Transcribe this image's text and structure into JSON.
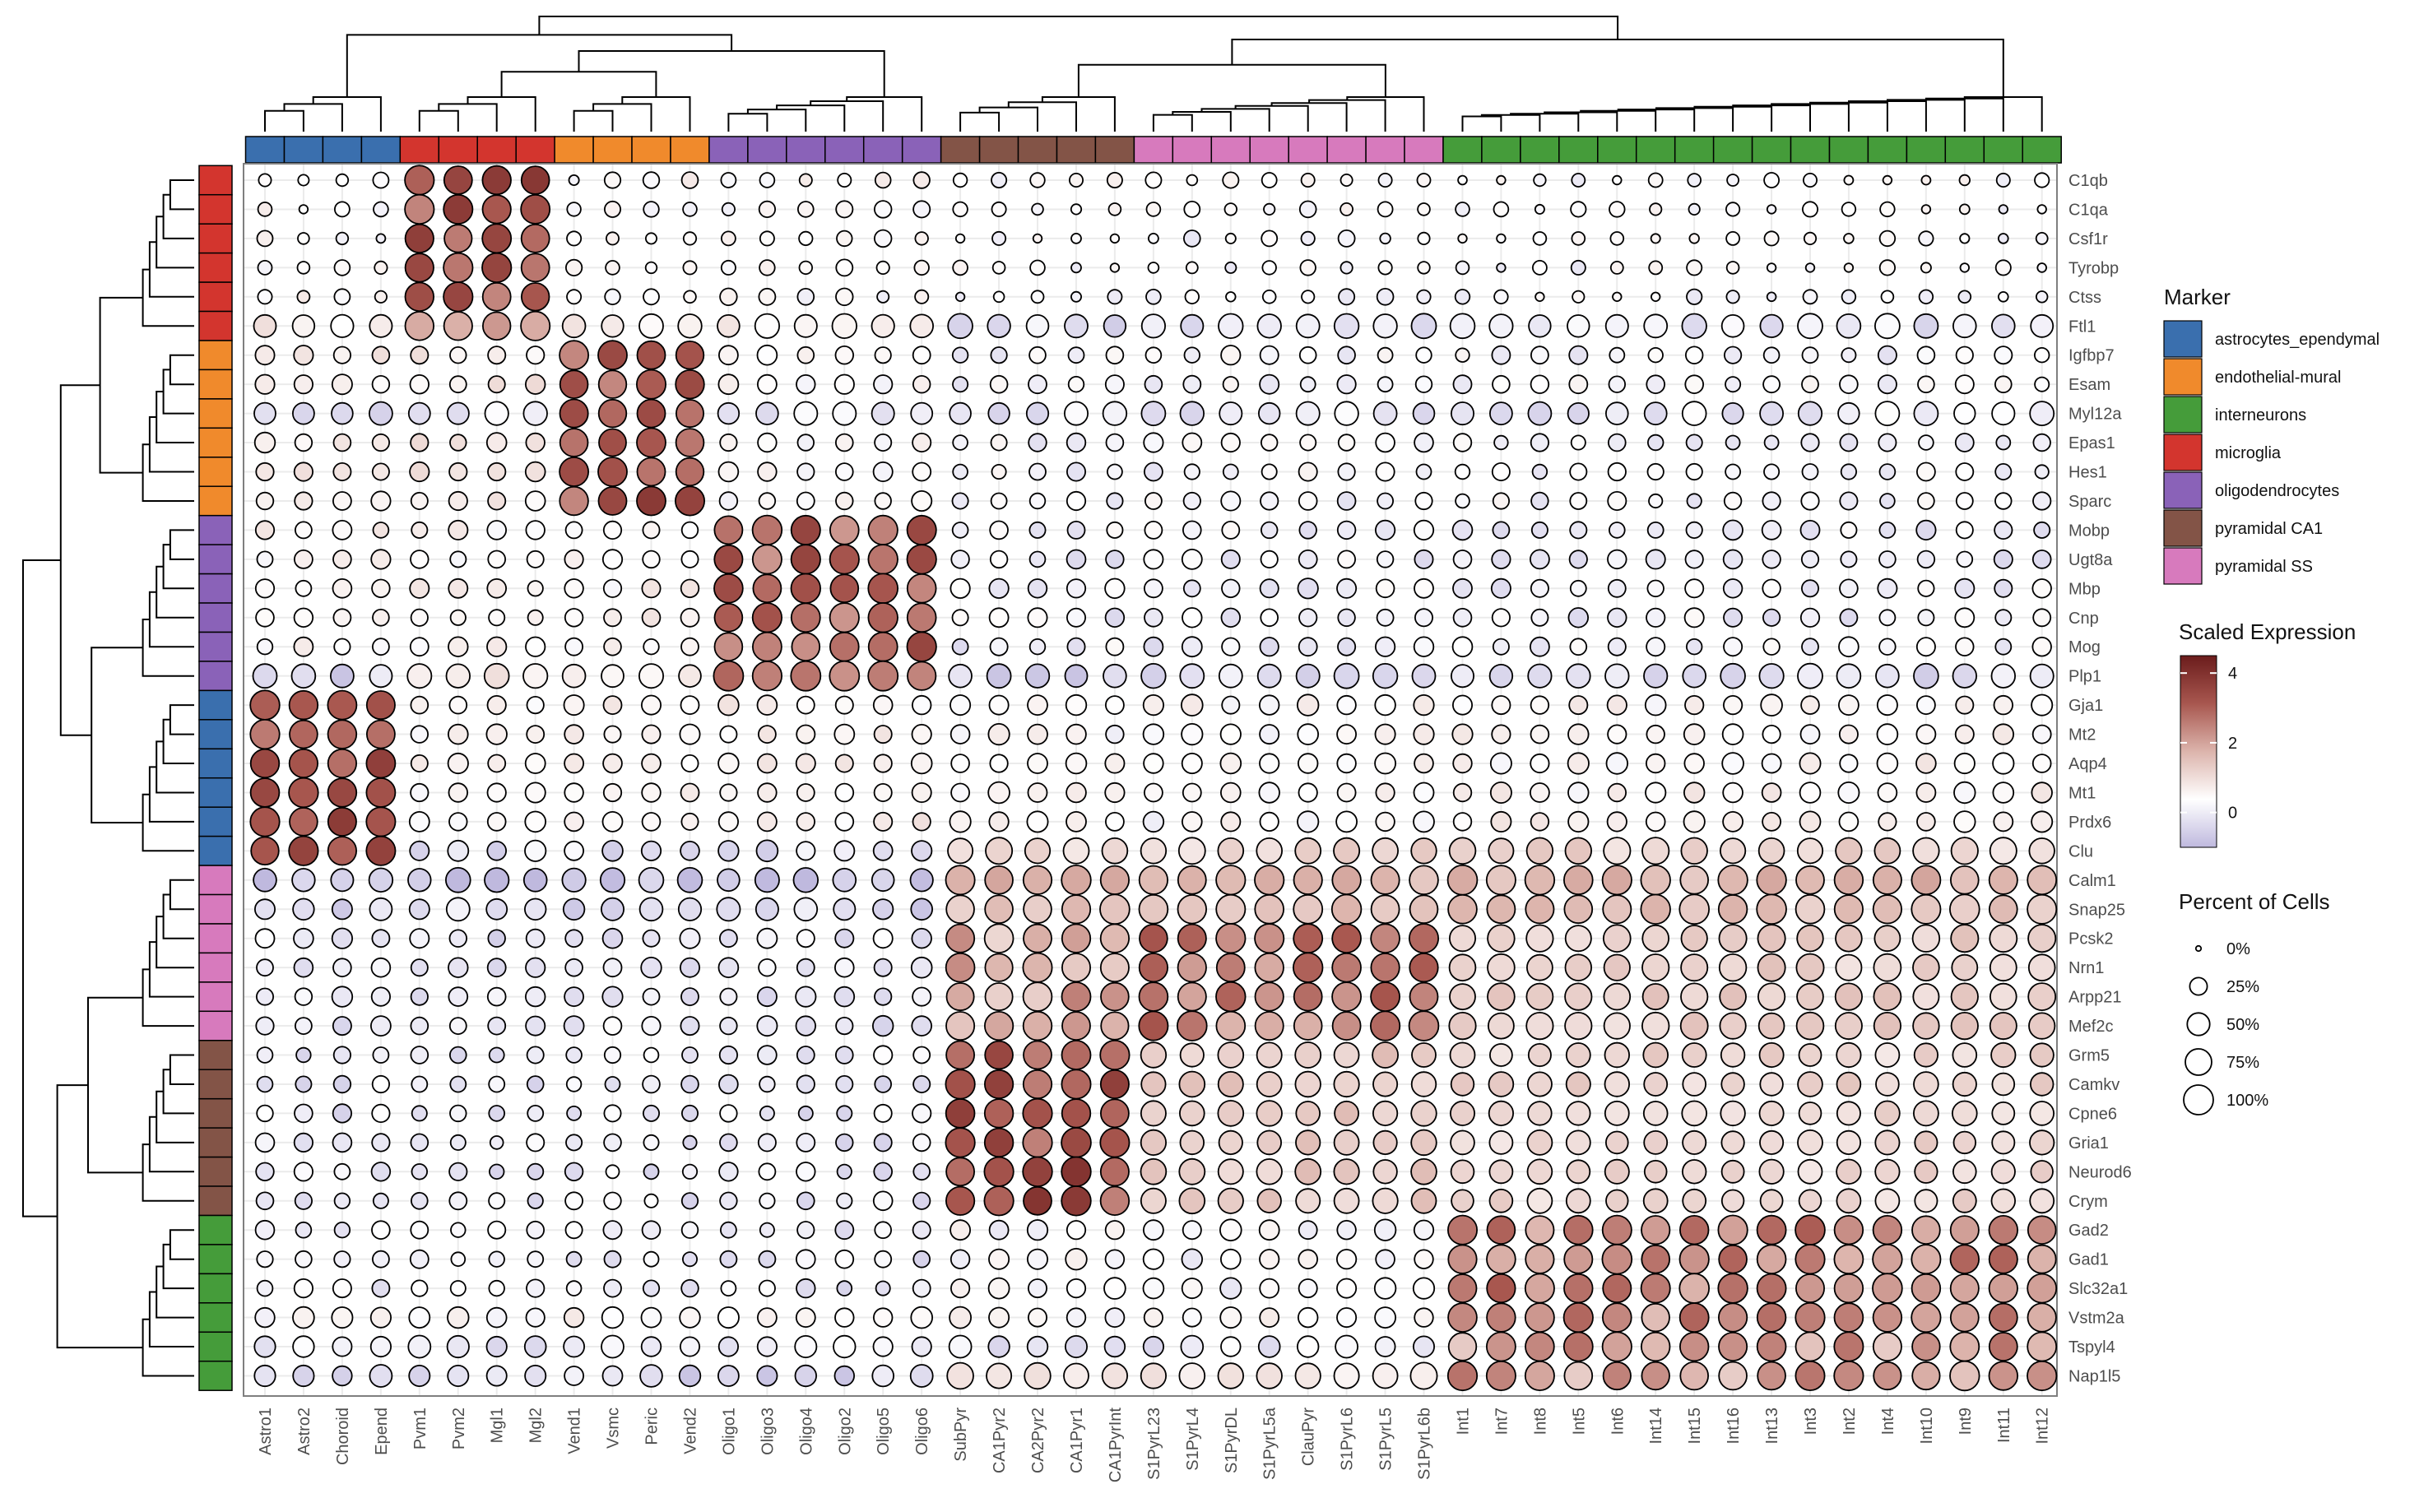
{
  "chart_data": {
    "type": "heatmap",
    "subtype": "clustered dot plot",
    "columns": [
      "Astro1",
      "Astro2",
      "Choroid",
      "Epend",
      "Pvm1",
      "Pvm2",
      "Mgl1",
      "Mgl2",
      "Vend1",
      "Vsmc",
      "Peric",
      "Vend2",
      "Oligo1",
      "Oligo3",
      "Oligo4",
      "Oligo2",
      "Oligo5",
      "Oligo6",
      "SubPyr",
      "CA1Pyr2",
      "CA2Pyr2",
      "CA1Pyr1",
      "CA1PyrInt",
      "S1PyrL23",
      "S1PyrL4",
      "S1PyrDL",
      "S1PyrL5a",
      "ClauPyr",
      "S1PyrL6",
      "S1PyrL5",
      "S1PyrL6b",
      "Int1",
      "Int7",
      "Int8",
      "Int5",
      "Int6",
      "Int14",
      "Int15",
      "Int16",
      "Int13",
      "Int3",
      "Int2",
      "Int4",
      "Int10",
      "Int9",
      "Int11",
      "Int12"
    ],
    "column_groups": [
      {
        "group": "astrocytes_ependymal",
        "span": [
          0,
          3
        ]
      },
      {
        "group": "microglia",
        "span": [
          4,
          7
        ]
      },
      {
        "group": "endothelial-mural",
        "span": [
          8,
          11
        ]
      },
      {
        "group": "oligodendrocytes",
        "span": [
          12,
          17
        ]
      },
      {
        "group": "pyramidal CA1",
        "span": [
          18,
          22
        ]
      },
      {
        "group": "pyramidal SS",
        "span": [
          23,
          30
        ]
      },
      {
        "group": "interneurons",
        "span": [
          31,
          46
        ]
      }
    ],
    "rows": [
      "C1qb",
      "C1qa",
      "Csf1r",
      "Tyrobp",
      "Ctss",
      "Ftl1",
      "Igfbp7",
      "Esam",
      "Myl12a",
      "Epas1",
      "Hes1",
      "Sparc",
      "Mobp",
      "Ugt8a",
      "Mbp",
      "Cnp",
      "Mog",
      "Plp1",
      "Gja1",
      "Mt2",
      "Aqp4",
      "Mt1",
      "Prdx6",
      "Clu",
      "Calm1",
      "Snap25",
      "Pcsk2",
      "Nrn1",
      "Arpp21",
      "Mef2c",
      "Grm5",
      "Camkv",
      "Cpne6",
      "Gria1",
      "Neurod6",
      "Crym",
      "Gad2",
      "Gad1",
      "Slc32a1",
      "Vstm2a",
      "Tspyl4",
      "Nap1l5"
    ],
    "row_groups": [
      {
        "group": "microglia",
        "span": [
          0,
          5
        ]
      },
      {
        "group": "endothelial-mural",
        "span": [
          6,
          11
        ]
      },
      {
        "group": "oligodendrocytes",
        "span": [
          12,
          17
        ]
      },
      {
        "group": "astrocytes_ependymal",
        "span": [
          18,
          23
        ]
      },
      {
        "group": "pyramidal SS",
        "span": [
          24,
          29
        ]
      },
      {
        "group": "pyramidal CA1",
        "span": [
          30,
          35
        ]
      },
      {
        "group": "interneurons",
        "span": [
          36,
          41
        ]
      }
    ],
    "dot_encoding": {
      "size": "Percent of Cells (0-100)",
      "color": "Scaled Expression (-1 to 4.5)",
      "note": "per-dot values approximated from the figure by cell-type/marker group"
    },
    "legend": {
      "marker": {
        "title": "Marker",
        "entries": [
          {
            "label": "astrocytes_ependymal",
            "color": "#3a6fae"
          },
          {
            "label": "endothelial-mural",
            "color": "#f08a2c"
          },
          {
            "label": "interneurons",
            "color": "#459c3a"
          },
          {
            "label": "microglia",
            "color": "#d3352e"
          },
          {
            "label": "oligodendrocytes",
            "color": "#8a62b8"
          },
          {
            "label": "pyramidal CA1",
            "color": "#835447"
          },
          {
            "label": "pyramidal SS",
            "color": "#d77abd"
          }
        ]
      },
      "scaled_expression": {
        "title": "Scaled Expression",
        "range": [
          -1,
          4.5
        ],
        "ticks": [
          4,
          2,
          0
        ],
        "tick_labels": [
          "4",
          "2",
          "0"
        ],
        "colors": [
          "#bfb9de",
          "#ffffff",
          "#dcb4ac",
          "#a8574f",
          "#6b1c1c"
        ]
      },
      "percent_of_cells": {
        "title": "Percent of Cells",
        "entries": [
          {
            "label": "0%",
            "value": 0
          },
          {
            "label": "25%",
            "value": 25
          },
          {
            "label": "50%",
            "value": 50
          },
          {
            "label": "75%",
            "value": 75
          },
          {
            "label": "100%",
            "value": 100
          }
        ]
      }
    },
    "row_dendrogram": "hierarchical clustering of markers (left)",
    "column_dendrogram": "hierarchical clustering of cell types (top)"
  }
}
